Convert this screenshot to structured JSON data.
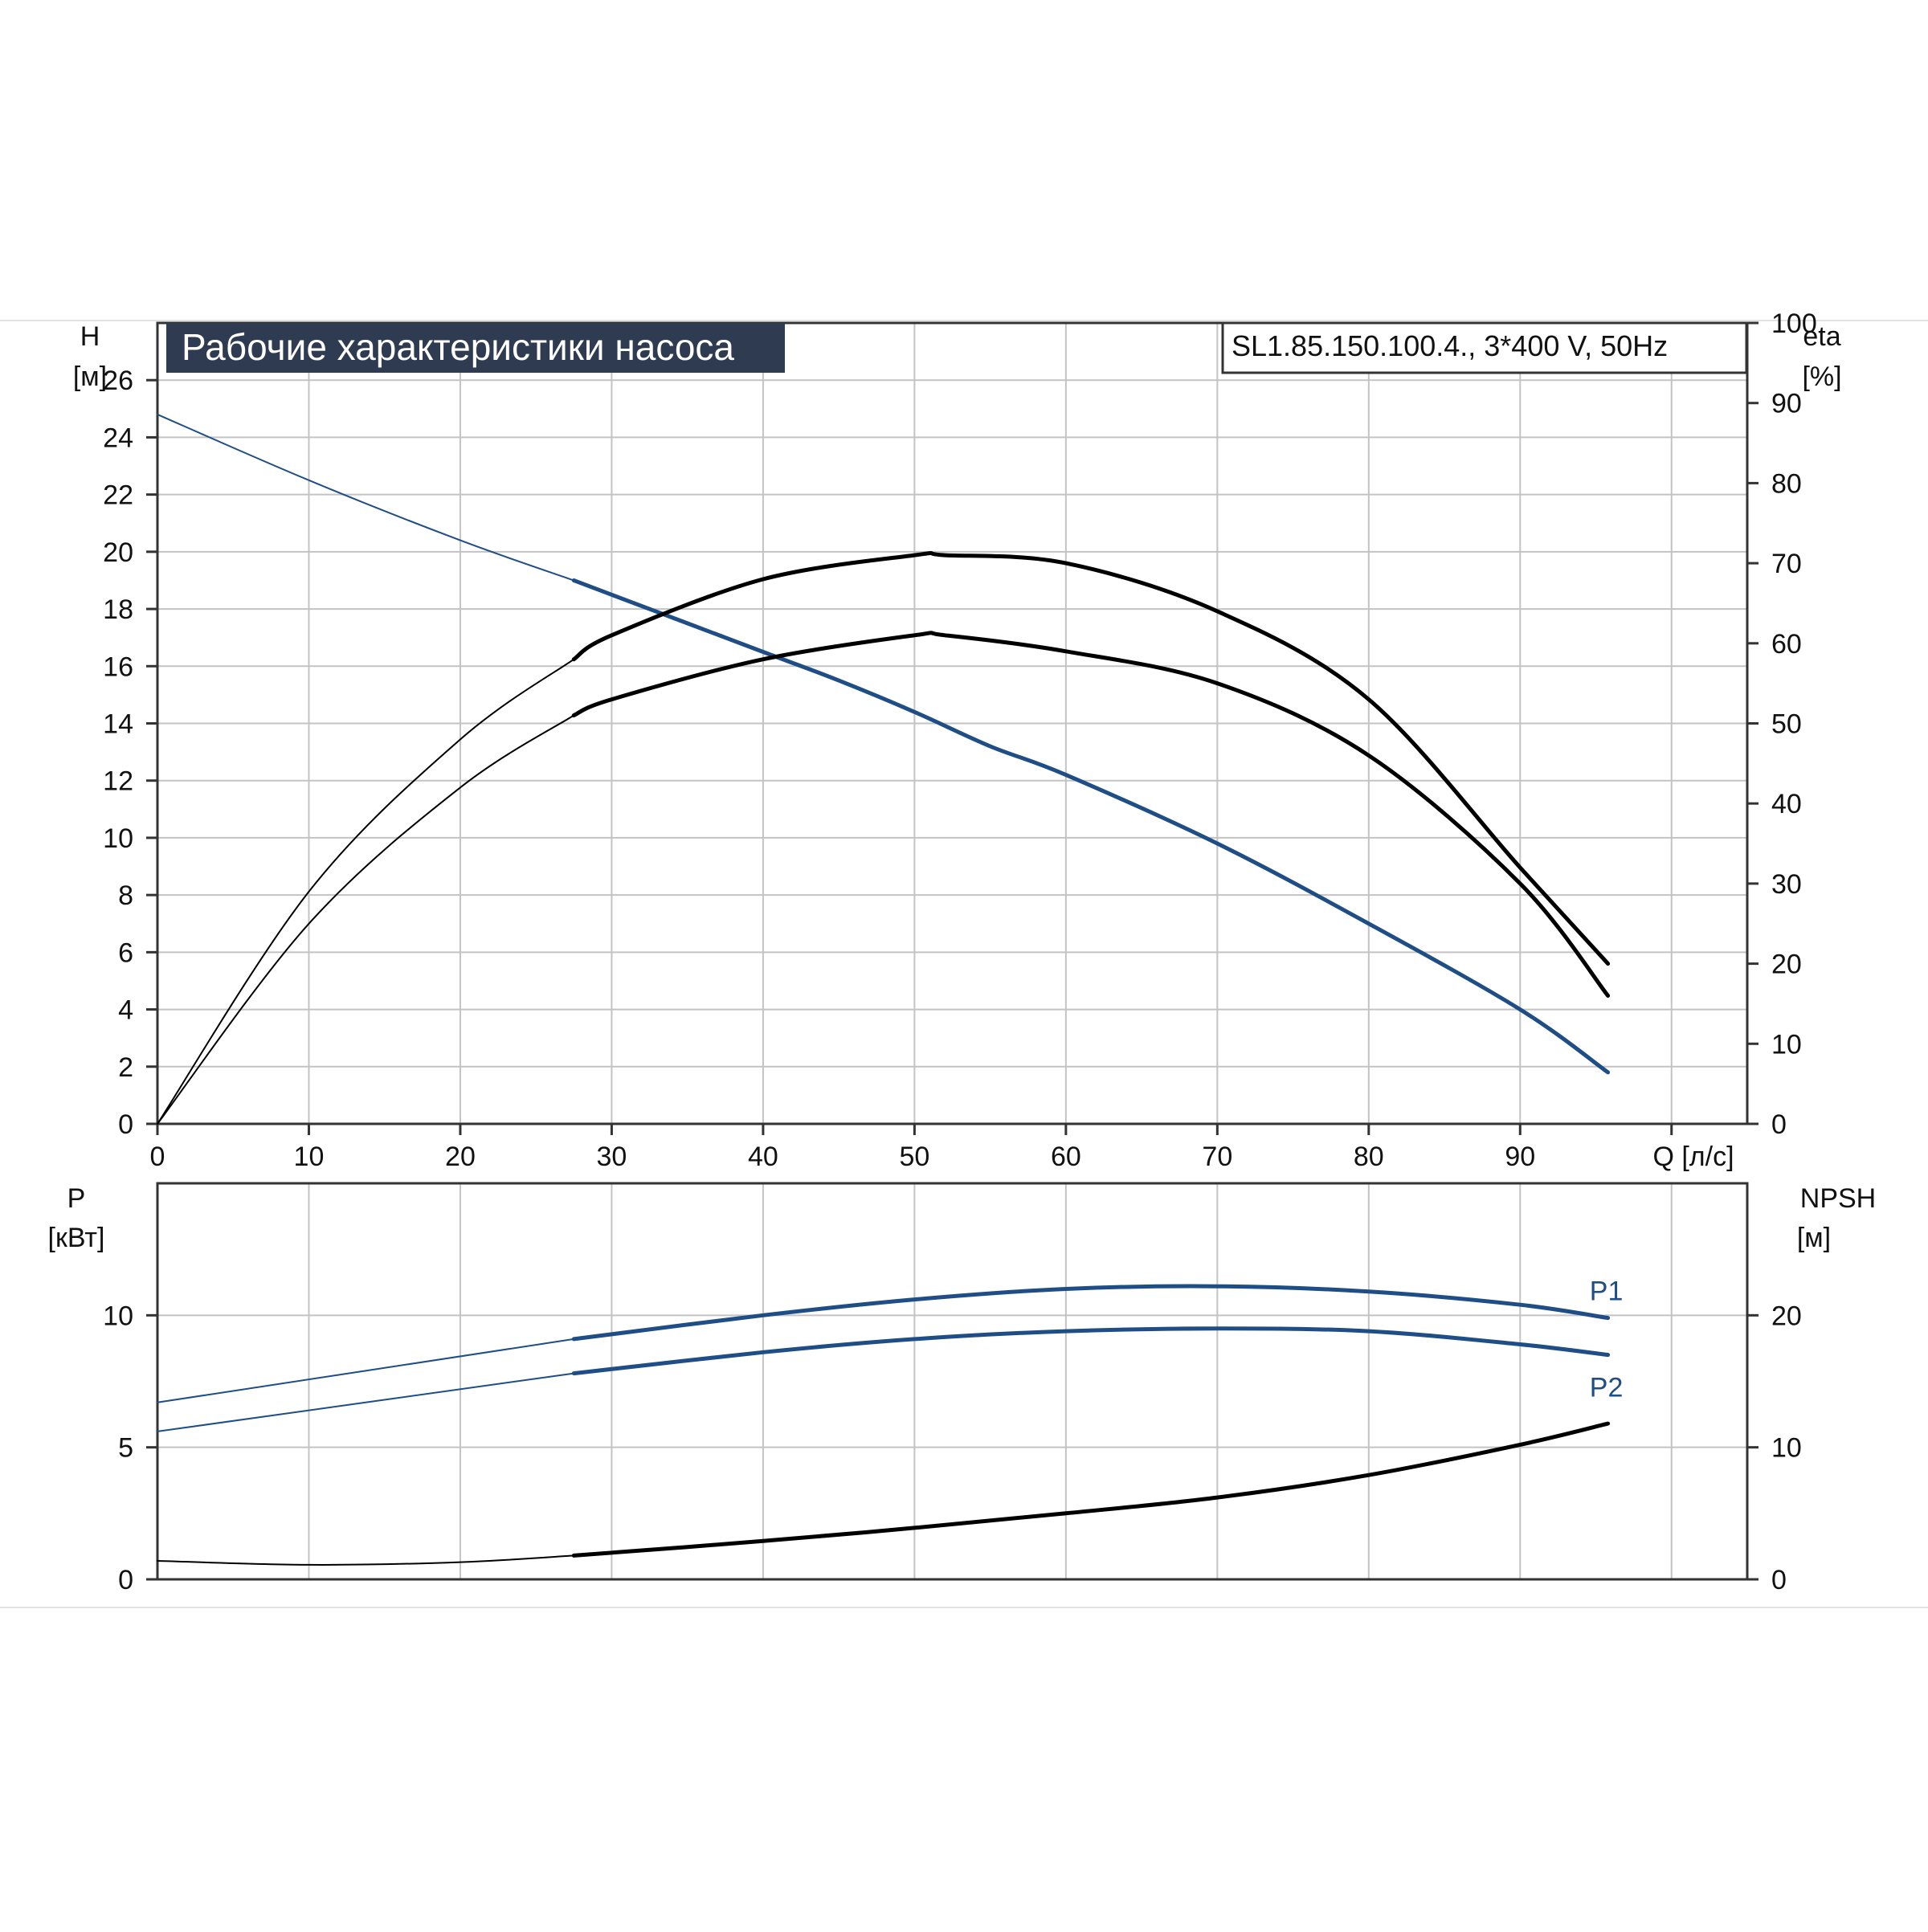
{
  "chart_data": [
    {
      "type": "line",
      "title": "Рабочие характеристики насоса",
      "subtitle": "SL1.85.150.100.4., 3*400 V, 50Hz",
      "xlabel": "Q [л/с]",
      "ylabel_left": [
        "H",
        "[м]"
      ],
      "ylabel_right": [
        "eta",
        "[%]"
      ],
      "xlim": [
        0,
        105
      ],
      "ylim_left": [
        0,
        28
      ],
      "ylim_right": [
        0,
        100
      ],
      "x_ticks": [
        0,
        10,
        20,
        30,
        40,
        50,
        60,
        70,
        80,
        90
      ],
      "y_ticks_left": [
        0,
        2,
        4,
        6,
        8,
        10,
        12,
        14,
        16,
        18,
        20,
        22,
        24,
        26
      ],
      "y_ticks_right": [
        0,
        10,
        20,
        30,
        40,
        50,
        60,
        70,
        80,
        90,
        100
      ],
      "grid": true,
      "series": [
        {
          "axis": "left",
          "color": "#1f4e86",
          "points": [
            [
              0,
              24.8
            ],
            [
              10,
              22.5
            ],
            [
              20,
              20.4
            ],
            [
              27.5,
              19.0
            ],
            [
              30,
              18.5
            ],
            [
              40,
              16.5
            ],
            [
              45,
              15.5
            ],
            [
              50,
              14.4
            ],
            [
              55,
              13.2
            ],
            [
              60,
              12.2
            ],
            [
              70,
              9.8
            ],
            [
              80,
              7.0
            ],
            [
              90,
              4.0
            ],
            [
              95.8,
              1.8
            ]
          ],
          "bold_from": 27.5
        },
        {
          "axis": "right",
          "color": "#000000",
          "points": [
            [
              0,
              0
            ],
            [
              10,
              29
            ],
            [
              20,
              48
            ],
            [
              27.5,
              58
            ],
            [
              30,
              61
            ],
            [
              40,
              68
            ],
            [
              50,
              71
            ],
            [
              52,
              71
            ],
            [
              60,
              70
            ],
            [
              70,
              64
            ],
            [
              80,
              53
            ],
            [
              90,
              32
            ],
            [
              95.8,
              20
            ]
          ],
          "bold_from": 27.5
        },
        {
          "axis": "right",
          "color": "#000000",
          "points": [
            [
              0,
              0
            ],
            [
              10,
              25
            ],
            [
              20,
              42
            ],
            [
              27.5,
              51
            ],
            [
              30,
              53
            ],
            [
              40,
              58
            ],
            [
              50,
              61
            ],
            [
              52,
              61
            ],
            [
              60,
              59
            ],
            [
              70,
              55
            ],
            [
              80,
              46
            ],
            [
              90,
              30
            ],
            [
              95.8,
              16
            ]
          ],
          "bold_from": 27.5
        }
      ]
    },
    {
      "type": "line",
      "ylabel_left": [
        "P",
        "[кВт]"
      ],
      "ylabel_right": [
        "NPSH",
        "[м]"
      ],
      "xlim": [
        0,
        105
      ],
      "ylim_left": [
        0,
        15
      ],
      "ylim_right": [
        0,
        30
      ],
      "y_ticks_left": [
        0,
        5,
        10
      ],
      "y_ticks_right": [
        0,
        10,
        20
      ],
      "grid": true,
      "series": [
        {
          "name": "P1",
          "axis": "left",
          "color": "#1f4e86",
          "points": [
            [
              0,
              6.7
            ],
            [
              27.5,
              9.1
            ],
            [
              40,
              10.0
            ],
            [
              50,
              10.6
            ],
            [
              60,
              11.0
            ],
            [
              70,
              11.1
            ],
            [
              80,
              10.9
            ],
            [
              90,
              10.4
            ],
            [
              95.8,
              9.9
            ]
          ],
          "bold_from": 27.5
        },
        {
          "name": "P2",
          "axis": "left",
          "color": "#1f4e86",
          "points": [
            [
              0,
              5.6
            ],
            [
              27.5,
              7.8
            ],
            [
              40,
              8.6
            ],
            [
              50,
              9.1
            ],
            [
              60,
              9.4
            ],
            [
              70,
              9.5
            ],
            [
              80,
              9.4
            ],
            [
              90,
              8.9
            ],
            [
              95.8,
              8.5
            ]
          ],
          "bold_from": 27.5
        },
        {
          "axis": "right",
          "color": "#000000",
          "points": [
            [
              0,
              1.4
            ],
            [
              10,
              1.1
            ],
            [
              20,
              1.3
            ],
            [
              27.5,
              1.8
            ],
            [
              40,
              2.9
            ],
            [
              50,
              3.9
            ],
            [
              60,
              5.0
            ],
            [
              70,
              6.2
            ],
            [
              80,
              7.9
            ],
            [
              90,
              10.2
            ],
            [
              95.8,
              11.8
            ]
          ],
          "bold_from": 27.5
        }
      ]
    }
  ]
}
